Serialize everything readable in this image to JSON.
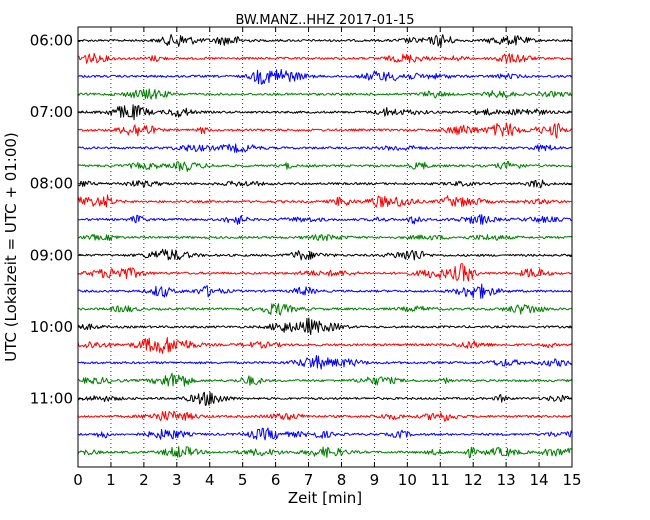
{
  "chart_data": {
    "type": "line",
    "title": "BW.MANZ..HHZ 2017-01-15",
    "xlabel": "Zeit  [min]",
    "ylabel": "UTC (Lokalzeit = UTC + 01:00)",
    "xlim": [
      0,
      15
    ],
    "x_ticks": [
      "0",
      "1",
      "2",
      "3",
      "4",
      "5",
      "6",
      "7",
      "8",
      "9",
      "10",
      "11",
      "12",
      "13",
      "14",
      "15"
    ],
    "y_tick_labels": [
      "06:00",
      "07:00",
      "08:00",
      "09:00",
      "10:00",
      "11:00"
    ],
    "grid": "vertical dotted at each minute",
    "trace_interval_minutes": 15,
    "trace_colors": [
      "#000000",
      "#ff0000",
      "#0000ff",
      "#008000"
    ],
    "traces": [
      {
        "start": "06:00",
        "color": "#000000"
      },
      {
        "start": "06:15",
        "color": "#ff0000"
      },
      {
        "start": "06:30",
        "color": "#0000ff"
      },
      {
        "start": "06:45",
        "color": "#008000"
      },
      {
        "start": "07:00",
        "color": "#000000"
      },
      {
        "start": "07:15",
        "color": "#ff0000"
      },
      {
        "start": "07:30",
        "color": "#0000ff"
      },
      {
        "start": "07:45",
        "color": "#008000"
      },
      {
        "start": "08:00",
        "color": "#000000"
      },
      {
        "start": "08:15",
        "color": "#ff0000"
      },
      {
        "start": "08:30",
        "color": "#0000ff"
      },
      {
        "start": "08:45",
        "color": "#008000"
      },
      {
        "start": "09:00",
        "color": "#000000"
      },
      {
        "start": "09:15",
        "color": "#ff0000"
      },
      {
        "start": "09:30",
        "color": "#0000ff"
      },
      {
        "start": "09:45",
        "color": "#008000"
      },
      {
        "start": "10:00",
        "color": "#000000"
      },
      {
        "start": "10:15",
        "color": "#ff0000"
      },
      {
        "start": "10:30",
        "color": "#0000ff"
      },
      {
        "start": "10:45",
        "color": "#008000"
      },
      {
        "start": "11:00",
        "color": "#000000"
      },
      {
        "start": "11:15",
        "color": "#ff0000"
      },
      {
        "start": "11:30",
        "color": "#0000ff"
      },
      {
        "start": "11:45",
        "color": "#008000"
      }
    ]
  }
}
